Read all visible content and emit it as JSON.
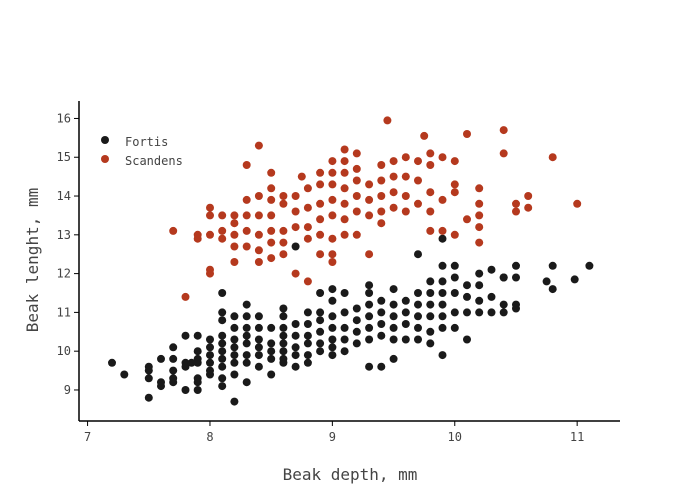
{
  "chart_data": {
    "type": "scatter",
    "xlabel": "Beak depth, mm",
    "ylabel": "Beak lenght, mm",
    "xlim": [
      6.93,
      11.35
    ],
    "ylim": [
      8.2,
      16.45
    ],
    "xticks": [
      "7",
      "8",
      "9",
      "10",
      "11"
    ],
    "yticks": [
      "9",
      "10",
      "11",
      "12",
      "13",
      "14",
      "15",
      "16"
    ],
    "legend_position": "top-left",
    "series": [
      {
        "name": "Fortis",
        "color": "#1a1a1a",
        "points": [
          [
            7.2,
            9.7
          ],
          [
            7.3,
            9.4
          ],
          [
            7.5,
            9.6
          ],
          [
            7.5,
            9.5
          ],
          [
            7.5,
            9.3
          ],
          [
            7.5,
            8.8
          ],
          [
            7.6,
            9.2
          ],
          [
            7.6,
            9.1
          ],
          [
            7.6,
            9.8
          ],
          [
            7.7,
            10.1
          ],
          [
            7.7,
            9.8
          ],
          [
            7.7,
            9.5
          ],
          [
            7.7,
            9.3
          ],
          [
            7.7,
            9.2
          ],
          [
            7.8,
            10.4
          ],
          [
            7.8,
            9.7
          ],
          [
            7.8,
            9.6
          ],
          [
            7.8,
            9.0
          ],
          [
            7.85,
            9.7
          ],
          [
            7.9,
            10.4
          ],
          [
            7.9,
            10.0
          ],
          [
            7.9,
            9.8
          ],
          [
            7.9,
            9.7
          ],
          [
            7.9,
            9.3
          ],
          [
            7.9,
            9.2
          ],
          [
            7.9,
            9.0
          ],
          [
            8.0,
            10.3
          ],
          [
            8.0,
            10.1
          ],
          [
            8.0,
            9.9
          ],
          [
            8.0,
            9.7
          ],
          [
            8.0,
            9.5
          ],
          [
            8.0,
            9.4
          ],
          [
            8.1,
            11.0
          ],
          [
            8.1,
            10.8
          ],
          [
            8.1,
            10.4
          ],
          [
            8.1,
            10.2
          ],
          [
            8.1,
            10.0
          ],
          [
            8.1,
            9.8
          ],
          [
            8.1,
            9.6
          ],
          [
            8.1,
            9.3
          ],
          [
            8.1,
            9.1
          ],
          [
            8.1,
            11.5
          ],
          [
            8.2,
            10.9
          ],
          [
            8.2,
            10.6
          ],
          [
            8.2,
            10.3
          ],
          [
            8.2,
            10.1
          ],
          [
            8.2,
            9.9
          ],
          [
            8.2,
            9.7
          ],
          [
            8.2,
            9.4
          ],
          [
            8.2,
            8.7
          ],
          [
            8.3,
            11.2
          ],
          [
            8.3,
            10.9
          ],
          [
            8.3,
            10.6
          ],
          [
            8.3,
            10.4
          ],
          [
            8.3,
            10.2
          ],
          [
            8.3,
            9.9
          ],
          [
            8.3,
            9.7
          ],
          [
            8.3,
            9.2
          ],
          [
            8.4,
            10.9
          ],
          [
            8.4,
            10.6
          ],
          [
            8.4,
            10.3
          ],
          [
            8.4,
            10.1
          ],
          [
            8.4,
            9.9
          ],
          [
            8.4,
            9.6
          ],
          [
            8.5,
            10.6
          ],
          [
            8.5,
            10.2
          ],
          [
            8.5,
            10.0
          ],
          [
            8.5,
            9.8
          ],
          [
            8.5,
            9.4
          ],
          [
            8.6,
            11.1
          ],
          [
            8.6,
            10.9
          ],
          [
            8.6,
            10.6
          ],
          [
            8.6,
            10.4
          ],
          [
            8.6,
            10.2
          ],
          [
            8.6,
            10.0
          ],
          [
            8.6,
            9.8
          ],
          [
            8.6,
            9.7
          ],
          [
            8.7,
            10.7
          ],
          [
            8.7,
            10.4
          ],
          [
            8.7,
            10.1
          ],
          [
            8.7,
            9.9
          ],
          [
            8.7,
            9.6
          ],
          [
            8.7,
            12.7
          ],
          [
            8.8,
            11.0
          ],
          [
            8.8,
            10.7
          ],
          [
            8.8,
            10.4
          ],
          [
            8.8,
            10.2
          ],
          [
            8.8,
            9.9
          ],
          [
            8.8,
            9.7
          ],
          [
            8.9,
            11.5
          ],
          [
            8.9,
            11.0
          ],
          [
            8.9,
            10.8
          ],
          [
            8.9,
            10.5
          ],
          [
            8.9,
            10.2
          ],
          [
            8.9,
            10.0
          ],
          [
            9.0,
            11.6
          ],
          [
            9.0,
            11.3
          ],
          [
            9.0,
            10.9
          ],
          [
            9.0,
            10.6
          ],
          [
            9.0,
            10.3
          ],
          [
            9.0,
            10.1
          ],
          [
            9.0,
            9.9
          ],
          [
            9.1,
            11.5
          ],
          [
            9.1,
            11.0
          ],
          [
            9.1,
            10.6
          ],
          [
            9.1,
            10.3
          ],
          [
            9.1,
            10.0
          ],
          [
            9.2,
            11.1
          ],
          [
            9.2,
            10.8
          ],
          [
            9.2,
            10.5
          ],
          [
            9.2,
            10.2
          ],
          [
            9.3,
            11.7
          ],
          [
            9.3,
            11.5
          ],
          [
            9.3,
            11.2
          ],
          [
            9.3,
            10.9
          ],
          [
            9.3,
            10.6
          ],
          [
            9.3,
            10.3
          ],
          [
            9.3,
            9.6
          ],
          [
            9.4,
            11.3
          ],
          [
            9.4,
            11.0
          ],
          [
            9.4,
            10.7
          ],
          [
            9.4,
            10.4
          ],
          [
            9.4,
            9.6
          ],
          [
            9.5,
            11.6
          ],
          [
            9.5,
            11.2
          ],
          [
            9.5,
            10.9
          ],
          [
            9.5,
            10.6
          ],
          [
            9.5,
            10.3
          ],
          [
            9.5,
            9.8
          ],
          [
            9.6,
            11.3
          ],
          [
            9.6,
            11.0
          ],
          [
            9.6,
            10.7
          ],
          [
            9.6,
            10.3
          ],
          [
            9.7,
            11.5
          ],
          [
            9.7,
            11.2
          ],
          [
            9.7,
            10.9
          ],
          [
            9.7,
            10.6
          ],
          [
            9.7,
            10.3
          ],
          [
            9.7,
            12.5
          ],
          [
            9.8,
            11.8
          ],
          [
            9.8,
            11.5
          ],
          [
            9.8,
            11.2
          ],
          [
            9.8,
            10.9
          ],
          [
            9.8,
            10.5
          ],
          [
            9.8,
            10.2
          ],
          [
            9.9,
            11.8
          ],
          [
            9.9,
            11.5
          ],
          [
            9.9,
            11.2
          ],
          [
            9.9,
            10.9
          ],
          [
            9.9,
            10.6
          ],
          [
            9.9,
            9.9
          ],
          [
            9.9,
            12.9
          ],
          [
            9.9,
            12.2
          ],
          [
            10.0,
            12.2
          ],
          [
            10.0,
            11.9
          ],
          [
            10.0,
            11.5
          ],
          [
            10.0,
            11.0
          ],
          [
            10.0,
            10.6
          ],
          [
            10.1,
            11.7
          ],
          [
            10.1,
            11.4
          ],
          [
            10.1,
            11.0
          ],
          [
            10.1,
            10.3
          ],
          [
            10.2,
            12.0
          ],
          [
            10.2,
            11.7
          ],
          [
            10.2,
            11.3
          ],
          [
            10.2,
            11.0
          ],
          [
            10.3,
            12.1
          ],
          [
            10.3,
            11.4
          ],
          [
            10.3,
            11.0
          ],
          [
            10.4,
            11.9
          ],
          [
            10.4,
            11.2
          ],
          [
            10.4,
            11.0
          ],
          [
            10.4,
            11.9
          ],
          [
            10.5,
            12.2
          ],
          [
            10.5,
            11.9
          ],
          [
            10.5,
            11.2
          ],
          [
            10.5,
            11.1
          ],
          [
            10.75,
            11.8
          ],
          [
            10.8,
            12.2
          ],
          [
            10.8,
            11.6
          ],
          [
            10.98,
            11.85
          ],
          [
            11.1,
            12.2
          ]
        ]
      },
      {
        "name": "Scandens",
        "color": "#b5391e",
        "points": [
          [
            7.7,
            13.1
          ],
          [
            7.8,
            11.4
          ],
          [
            7.9,
            13.0
          ],
          [
            7.9,
            12.9
          ],
          [
            8.0,
            13.7
          ],
          [
            8.0,
            13.5
          ],
          [
            8.0,
            13.0
          ],
          [
            8.0,
            12.1
          ],
          [
            8.0,
            12.0
          ],
          [
            8.1,
            13.5
          ],
          [
            8.1,
            13.1
          ],
          [
            8.1,
            12.9
          ],
          [
            8.2,
            13.5
          ],
          [
            8.2,
            13.3
          ],
          [
            8.2,
            13.0
          ],
          [
            8.2,
            12.7
          ],
          [
            8.2,
            12.3
          ],
          [
            8.3,
            14.8
          ],
          [
            8.3,
            13.9
          ],
          [
            8.3,
            13.5
          ],
          [
            8.3,
            13.1
          ],
          [
            8.3,
            12.7
          ],
          [
            8.4,
            15.3
          ],
          [
            8.4,
            14.0
          ],
          [
            8.4,
            13.5
          ],
          [
            8.4,
            13.0
          ],
          [
            8.4,
            12.6
          ],
          [
            8.4,
            12.3
          ],
          [
            8.5,
            14.6
          ],
          [
            8.5,
            14.2
          ],
          [
            8.5,
            13.9
          ],
          [
            8.5,
            13.5
          ],
          [
            8.5,
            13.1
          ],
          [
            8.5,
            12.8
          ],
          [
            8.5,
            12.4
          ],
          [
            8.6,
            14.0
          ],
          [
            8.6,
            13.8
          ],
          [
            8.6,
            13.1
          ],
          [
            8.6,
            12.8
          ],
          [
            8.6,
            12.5
          ],
          [
            8.7,
            14.0
          ],
          [
            8.7,
            13.6
          ],
          [
            8.7,
            13.2
          ],
          [
            8.7,
            12.0
          ],
          [
            8.75,
            14.5
          ],
          [
            8.8,
            14.2
          ],
          [
            8.8,
            13.7
          ],
          [
            8.8,
            13.2
          ],
          [
            8.8,
            12.9
          ],
          [
            8.8,
            11.8
          ],
          [
            8.9,
            14.6
          ],
          [
            8.9,
            14.3
          ],
          [
            8.9,
            13.8
          ],
          [
            8.9,
            13.4
          ],
          [
            8.9,
            13.0
          ],
          [
            8.9,
            12.5
          ],
          [
            9.0,
            14.9
          ],
          [
            9.0,
            14.6
          ],
          [
            9.0,
            14.3
          ],
          [
            9.0,
            13.9
          ],
          [
            9.0,
            13.5
          ],
          [
            9.0,
            12.9
          ],
          [
            9.0,
            12.5
          ],
          [
            9.0,
            12.3
          ],
          [
            9.1,
            15.2
          ],
          [
            9.1,
            14.9
          ],
          [
            9.1,
            14.6
          ],
          [
            9.1,
            14.2
          ],
          [
            9.1,
            13.8
          ],
          [
            9.1,
            13.4
          ],
          [
            9.1,
            13.0
          ],
          [
            9.2,
            15.1
          ],
          [
            9.2,
            14.7
          ],
          [
            9.2,
            14.4
          ],
          [
            9.2,
            14.0
          ],
          [
            9.2,
            13.6
          ],
          [
            9.2,
            13.0
          ],
          [
            9.3,
            14.3
          ],
          [
            9.3,
            13.9
          ],
          [
            9.3,
            13.5
          ],
          [
            9.3,
            12.5
          ],
          [
            9.4,
            14.8
          ],
          [
            9.4,
            14.4
          ],
          [
            9.4,
            14.0
          ],
          [
            9.4,
            13.6
          ],
          [
            9.4,
            13.3
          ],
          [
            9.45,
            15.95
          ],
          [
            9.5,
            14.9
          ],
          [
            9.5,
            14.5
          ],
          [
            9.5,
            14.1
          ],
          [
            9.5,
            13.7
          ],
          [
            9.6,
            15.0
          ],
          [
            9.6,
            14.5
          ],
          [
            9.6,
            14.0
          ],
          [
            9.6,
            13.6
          ],
          [
            9.7,
            14.9
          ],
          [
            9.7,
            14.4
          ],
          [
            9.7,
            13.8
          ],
          [
            9.75,
            15.55
          ],
          [
            9.8,
            15.1
          ],
          [
            9.8,
            14.8
          ],
          [
            9.8,
            14.1
          ],
          [
            9.8,
            13.6
          ],
          [
            9.8,
            13.1
          ],
          [
            9.9,
            15.0
          ],
          [
            9.9,
            13.9
          ],
          [
            9.9,
            13.1
          ],
          [
            10.0,
            14.9
          ],
          [
            10.0,
            14.3
          ],
          [
            10.0,
            14.1
          ],
          [
            10.0,
            13.0
          ],
          [
            10.1,
            15.6
          ],
          [
            10.1,
            13.4
          ],
          [
            10.2,
            14.2
          ],
          [
            10.2,
            13.8
          ],
          [
            10.2,
            13.5
          ],
          [
            10.2,
            13.2
          ],
          [
            10.2,
            12.8
          ],
          [
            10.4,
            15.7
          ],
          [
            10.4,
            15.1
          ],
          [
            10.5,
            13.8
          ],
          [
            10.5,
            13.6
          ],
          [
            10.6,
            14.0
          ],
          [
            10.6,
            13.7
          ],
          [
            10.8,
            15.0
          ],
          [
            11.0,
            13.8
          ]
        ]
      }
    ]
  }
}
